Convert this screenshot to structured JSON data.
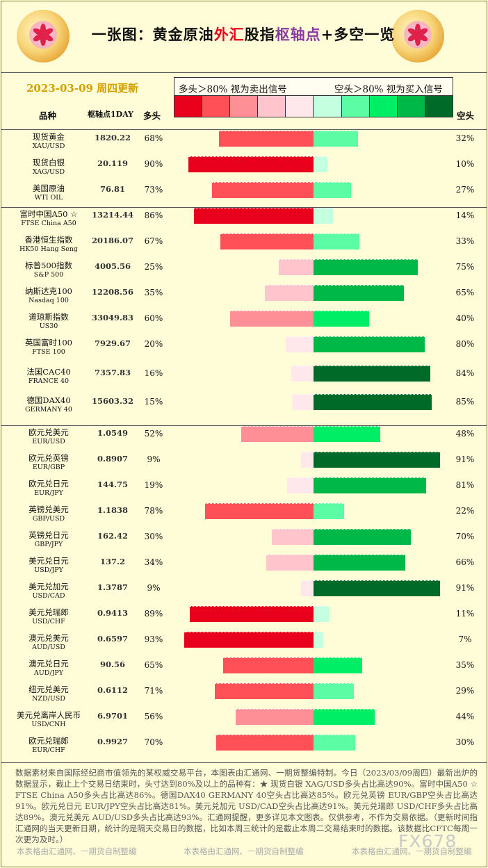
{
  "header": {
    "title_a": "一张图：黄金原油",
    "title_b": "外汇",
    "title_c": "股指",
    "title_d": "枢轴点",
    "title_e": "+多空一览",
    "date": "2023-03-09  周四更新",
    "legend_long": "多头＞80%  视为卖出信号",
    "legend_short": "空头＞80%  视为买入信号",
    "col_name": "品种",
    "col_pivot": "枢轴点1DAY",
    "col_long": "多头",
    "col_short": "空头"
  },
  "colors": {
    "swatches": [
      "#e8001c",
      "#ff4f57",
      "#ff8f97",
      "#ffc4cc",
      "#ffe8ec",
      "#c4ffe0",
      "#5cfca4",
      "#00ee66",
      "#00b848",
      "#006a28"
    ]
  },
  "chart_data": {
    "type": "bar",
    "rows": [
      {
        "cn": "现货黄金",
        "en": "XAU/USD",
        "pivot": "1820.22",
        "long": 68,
        "short": 32
      },
      {
        "cn": "现货白银",
        "en": "XAG/USD",
        "pivot": "20.119",
        "long": 90,
        "short": 10
      },
      {
        "cn": "美国原油",
        "en": "WTI OIL",
        "pivot": "76.81",
        "long": 73,
        "short": 27
      },
      {
        "cn": "富时中国A50 ☆",
        "en": "FTSE China A50",
        "pivot": "13214.44",
        "long": 86,
        "short": 14
      },
      {
        "cn": "香港恒生指数",
        "en": "HK50 Hang Seng",
        "pivot": "20186.07",
        "long": 67,
        "short": 33
      },
      {
        "cn": "标普500指数",
        "en": "S&P 500",
        "pivot": "4005.56",
        "long": 25,
        "short": 75
      },
      {
        "cn": "纳斯达克100",
        "en": "Nasdaq 100",
        "pivot": "12208.56",
        "long": 35,
        "short": 65
      },
      {
        "cn": "道琼斯指数",
        "en": "US30",
        "pivot": "33049.83",
        "long": 60,
        "short": 40
      },
      {
        "cn": "英国富时100",
        "en": "FTSE 100",
        "pivot": "7929.67",
        "long": 20,
        "short": 80
      },
      {
        "cn": "法国CAC40",
        "en": "FRANCE 40",
        "pivot": "7357.83",
        "long": 16,
        "short": 84
      },
      {
        "cn": "德国DAX40",
        "en": "GERMANY 40",
        "pivot": "15603.32",
        "long": 15,
        "short": 85
      },
      {
        "cn": "欧元兑美元",
        "en": "EUR/USD",
        "pivot": "1.0549",
        "long": 52,
        "short": 48
      },
      {
        "cn": "欧元兑英镑",
        "en": "EUR/GBP",
        "pivot": "0.8907",
        "long": 9,
        "short": 91
      },
      {
        "cn": "欧元兑日元",
        "en": "EUR/JPY",
        "pivot": "144.75",
        "long": 19,
        "short": 81
      },
      {
        "cn": "英镑兑美元",
        "en": "GBP/USD",
        "pivot": "1.1838",
        "long": 78,
        "short": 22
      },
      {
        "cn": "英镑兑日元",
        "en": "GBP/JPY",
        "pivot": "162.42",
        "long": 30,
        "short": 70
      },
      {
        "cn": "美元兑日元",
        "en": "USD/JPY",
        "pivot": "137.2",
        "long": 34,
        "short": 66
      },
      {
        "cn": "美元兑加元",
        "en": "USD/CAD",
        "pivot": "1.3787",
        "long": 9,
        "short": 91
      },
      {
        "cn": "美元兑瑞郎",
        "en": "USD/CHF",
        "pivot": "0.9413",
        "long": 89,
        "short": 11
      },
      {
        "cn": "澳元兑美元",
        "en": "AUD/USD",
        "pivot": "0.6597",
        "long": 93,
        "short": 7
      },
      {
        "cn": "澳元兑日元",
        "en": "AUD/JPY",
        "pivot": "90.56",
        "long": 65,
        "short": 35
      },
      {
        "cn": "纽元兑美元",
        "en": "NZD/USD",
        "pivot": "0.6112",
        "long": 71,
        "short": 29
      },
      {
        "cn": "美元兑离岸人民币",
        "en": "USD/CNH",
        "pivot": "6.9701",
        "long": 56,
        "short": 44
      },
      {
        "cn": "欧元兑瑞郎",
        "en": "EUR/CHF",
        "pivot": "0.9927",
        "long": 70,
        "short": 30
      }
    ]
  },
  "footer": {
    "text": "数据素材来自国际经纪商市值领先的某权威交易平台，本图表由汇通网、一期货整编特制。今日（2023/03/09周四）最新出炉的数据显示，截止上个交易日结束时，头寸达到80%及以上的品种有：★ 现货白银 XAG/USD多头占比高达90%。富时中国A50 ☆ FTSE China A50多头占比高达86%。德国DAX40      GERMANY 40空头占比高达85%。欧元兑英镑 EUR/GBP空头占比高达91%。欧元兑日元 EUR/JPY空头占比高达81%。美元兑加元 USD/CAD空头占比高达91%。美元兑瑞郎 USD/CHF多头占比高达89%。澳元兑美元 AUD/USD多头占比高达93%。汇通网提醒，更多详见本文图表。仅供参考，不作为交易依据。（更新时间指汇通网的当天更新日期，统计的是隔天交易日的数据，比如本周三统计的是截止本周二交易结束时的数据。该数据比CFTC每周一次更为及时。）",
    "credit": "本表格由汇通网、一期货自制整编",
    "watermark": "FX678"
  }
}
